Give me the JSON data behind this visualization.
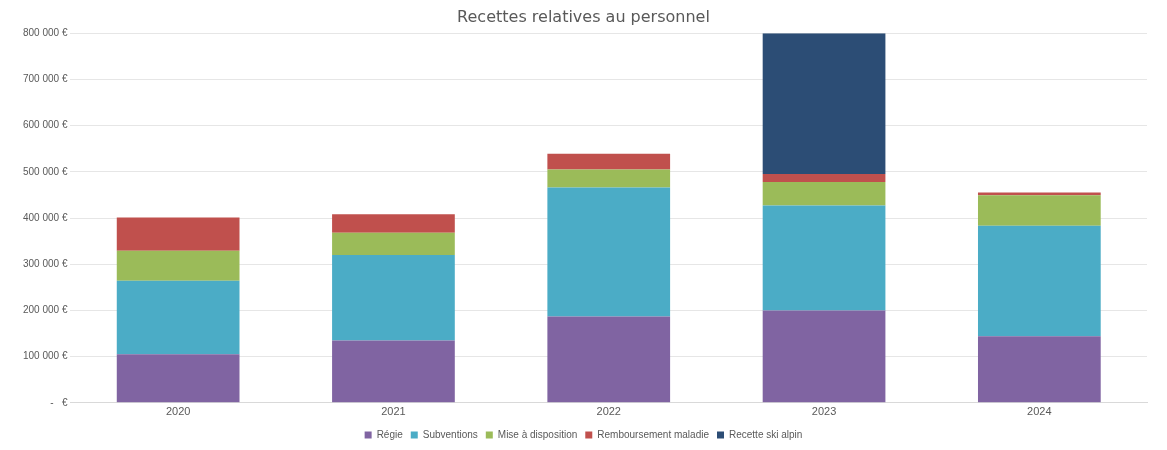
{
  "chart_data": {
    "type": "bar",
    "title": "Recettes relatives au personnel",
    "stacked": true,
    "categories": [
      "2020",
      "2021",
      "2022",
      "2023",
      "2024"
    ],
    "series": [
      {
        "name": "Régie",
        "color": "#8064a2",
        "values": [
          105000,
          135000,
          187000,
          200000,
          144000
        ]
      },
      {
        "name": "Subventions",
        "color": "#4bacc6",
        "values": [
          159000,
          185000,
          279000,
          227000,
          239000
        ]
      },
      {
        "name": "Mise à disposition",
        "color": "#9bbb59",
        "values": [
          65000,
          48000,
          39000,
          51000,
          66000
        ]
      },
      {
        "name": "Remboursement maladie",
        "color": "#c0504d",
        "values": [
          72000,
          40000,
          34000,
          17000,
          6000
        ]
      },
      {
        "name": "Recette ski alpin",
        "color": "#2c4d75",
        "values": [
          0,
          0,
          0,
          305000,
          0
        ]
      }
    ],
    "ylim": [
      0,
      800000
    ],
    "yticks": [
      {
        "value": 0,
        "label": "-   €"
      },
      {
        "value": 100000,
        "label": "100 000 €"
      },
      {
        "value": 200000,
        "label": "200 000 €"
      },
      {
        "value": 300000,
        "label": "300 000 €"
      },
      {
        "value": 400000,
        "label": "400 000 €"
      },
      {
        "value": 500000,
        "label": "500 000 €"
      },
      {
        "value": 600000,
        "label": "600 000 €"
      },
      {
        "value": 700000,
        "label": "700 000 €"
      },
      {
        "value": 800000,
        "label": "800 000 €"
      }
    ],
    "grid": "y",
    "legend": "bottom"
  }
}
